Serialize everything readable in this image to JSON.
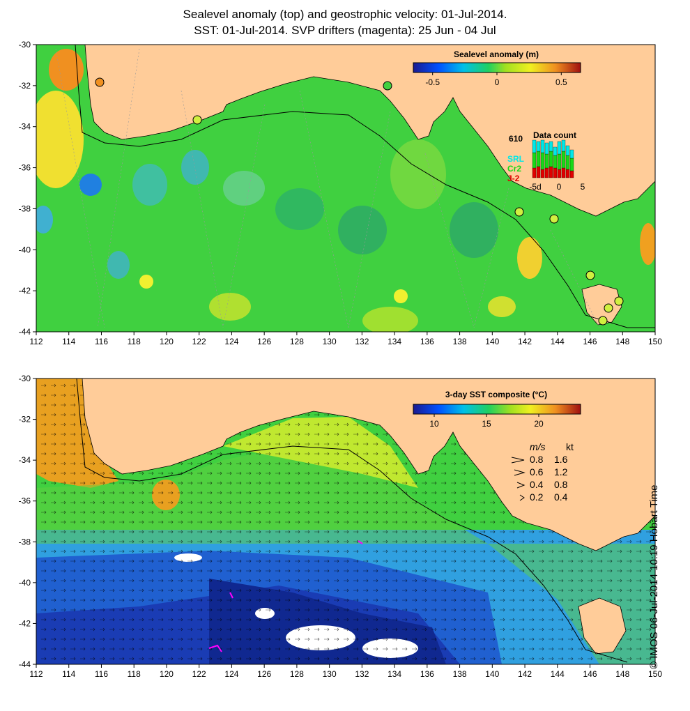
{
  "header": {
    "line1": "Sealevel anomaly (top) and geostrophic velocity: 01-Jul-2014.",
    "line2": "SST: 01-Jul-2014. SVP drifters (magenta): 25 Jun - 04 Jul"
  },
  "axes": {
    "lon_ticks": [
      "112",
      "114",
      "116",
      "118",
      "120",
      "122",
      "124",
      "126",
      "128",
      "130",
      "132",
      "134",
      "136",
      "138",
      "140",
      "142",
      "144",
      "146",
      "148",
      "150"
    ],
    "lat_ticks": [
      "-30",
      "-32",
      "-34",
      "-36",
      "-38",
      "-40",
      "-42",
      "-44"
    ],
    "lon_range": [
      112,
      150
    ],
    "lat_range": [
      -30,
      -44
    ]
  },
  "top_panel": {
    "colorbar_title": "Sealevel anomaly (m)",
    "colorbar_ticks": [
      "-0.5",
      "0",
      "0.5"
    ],
    "colorbar_values": [
      -0.5,
      0,
      0.5
    ],
    "colorbar_range": [
      -0.65,
      0.65
    ],
    "data_count": {
      "title": "Data count",
      "max_label": "610",
      "series": [
        "SRL",
        "Cr2",
        "J-2"
      ],
      "series_colors": [
        "#00e8e8",
        "#18d818",
        "#e00000"
      ],
      "x_ticks": [
        "-5d",
        "0",
        "5"
      ]
    }
  },
  "bottom_panel": {
    "colorbar_title": "3-day SST composite (°C)",
    "colorbar_ticks": [
      "10",
      "15",
      "20"
    ],
    "colorbar_values": [
      10,
      15,
      20
    ],
    "colorbar_range": [
      8,
      24
    ],
    "speed_legend": {
      "header_ms": "m/s",
      "header_kt": "kt",
      "rows": [
        {
          "ms": "0.8",
          "kt": "1.6"
        },
        {
          "ms": "0.6",
          "kt": "1.2"
        },
        {
          "ms": "0.4",
          "kt": "0.8"
        },
        {
          "ms": "0.2",
          "kt": "0.4"
        }
      ]
    }
  },
  "stamp": "© IMOS 06-Jul-2014 10:19 Hobart Time",
  "colors": {
    "land": "#ffcc99",
    "ocean_mid": "#40d040",
    "ocean_cold": "#1a3cb4",
    "ocean_warm": "#e8a020"
  }
}
